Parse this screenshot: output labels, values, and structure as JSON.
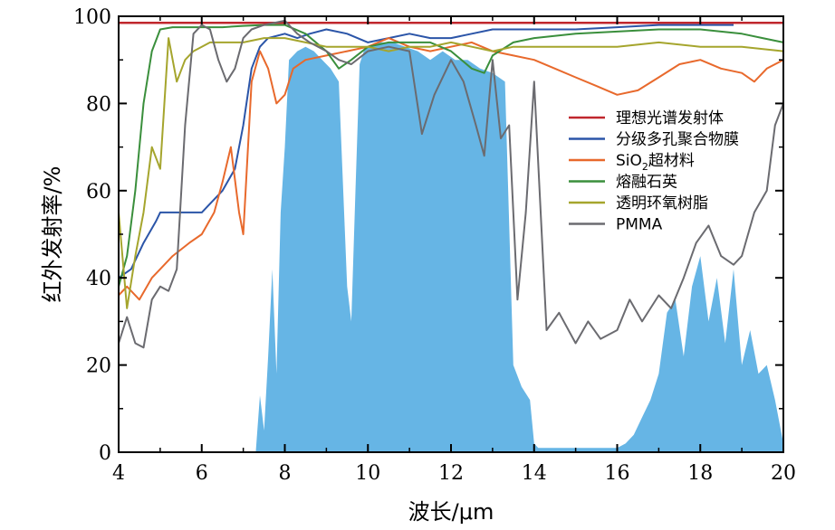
{
  "chart_data": {
    "type": "area",
    "title": "",
    "xlabel": "波长/μm",
    "ylabel": "红外发射率/%",
    "xlim": [
      4,
      20
    ],
    "ylim": [
      0,
      100
    ],
    "xticks": [
      4,
      6,
      8,
      10,
      12,
      14,
      16,
      18,
      20
    ],
    "yticks": [
      0,
      20,
      40,
      60,
      80,
      100
    ],
    "grid": false,
    "legend_position": "right",
    "atmospheric_window": {
      "color": "#66b5e5",
      "x": [
        4,
        7.3,
        7.4,
        7.5,
        7.6,
        7.7,
        7.8,
        7.9,
        8.0,
        8.1,
        8.3,
        8.5,
        8.7,
        8.9,
        9.1,
        9.3,
        9.5,
        9.6,
        9.7,
        9.8,
        9.9,
        10.0,
        10.3,
        10.6,
        10.9,
        11.2,
        11.5,
        11.8,
        12.1,
        12.4,
        12.7,
        13.0,
        13.3,
        13.5,
        13.7,
        13.9,
        14.0,
        14.1,
        16.0,
        16.2,
        16.4,
        16.6,
        16.8,
        17.0,
        17.2,
        17.4,
        17.6,
        17.8,
        18.0,
        18.2,
        18.4,
        18.6,
        18.8,
        19.0,
        19.2,
        19.4,
        19.6,
        19.8,
        20.0
      ],
      "y": [
        0,
        0,
        13,
        5,
        22,
        42,
        18,
        55,
        70,
        90,
        92,
        93,
        92,
        90,
        88,
        85,
        38,
        30,
        60,
        89,
        92,
        93,
        94,
        94,
        93,
        92,
        90,
        92,
        90,
        90,
        88,
        87,
        85,
        20,
        15,
        12,
        2,
        1,
        1,
        2,
        4,
        8,
        12,
        18,
        32,
        35,
        22,
        38,
        45,
        30,
        40,
        25,
        42,
        20,
        28,
        18,
        20,
        12,
        2
      ]
    },
    "series": [
      {
        "name": "理想光谱发射体",
        "color": "#c0272d",
        "x": [
          4,
          20
        ],
        "y": [
          98.5,
          98.5
        ]
      },
      {
        "name": "分级多孔聚合物膜",
        "color": "#2b55a8",
        "x": [
          4,
          4.3,
          4.6,
          4.9,
          5.0,
          5.3,
          5.6,
          6.0,
          6.2,
          6.5,
          6.8,
          7.0,
          7.2,
          7.4,
          7.6,
          8.0,
          8.3,
          8.6,
          9.0,
          9.5,
          10.0,
          10.5,
          11.0,
          11.5,
          12.0,
          12.5,
          13.0,
          13.5,
          14.0,
          15.0,
          16.0,
          17.0,
          18.0,
          18.8
        ],
        "y": [
          40,
          42,
          48,
          53,
          55,
          55,
          55,
          55,
          57,
          60,
          65,
          75,
          88,
          93,
          95,
          96,
          95,
          96,
          97,
          96,
          94,
          95,
          96,
          95,
          95,
          96,
          97,
          97,
          97,
          97,
          97.5,
          98,
          98,
          98
        ]
      },
      {
        "name": "SiO2超材料",
        "color": "#e8692c",
        "x": [
          4,
          4.2,
          4.5,
          4.8,
          5.0,
          5.3,
          5.7,
          6.0,
          6.3,
          6.5,
          6.7,
          6.9,
          7.0,
          7.2,
          7.4,
          7.6,
          7.8,
          8.0,
          8.2,
          8.5,
          9.0,
          9.5,
          10.0,
          10.5,
          11.0,
          11.5,
          12.0,
          12.5,
          13.0,
          13.5,
          14.0,
          14.5,
          15.0,
          15.5,
          16.0,
          16.5,
          17.0,
          17.5,
          18.0,
          18.5,
          19.0,
          19.3,
          19.6,
          20.0
        ],
        "y": [
          36,
          38,
          35,
          40,
          42,
          45,
          48,
          50,
          55,
          62,
          70,
          55,
          50,
          85,
          92,
          88,
          80,
          82,
          88,
          90,
          91,
          92,
          93,
          95,
          93,
          92,
          93,
          94,
          92,
          91,
          90,
          88,
          86,
          84,
          82,
          83,
          86,
          89,
          90,
          88,
          87,
          85,
          88,
          90
        ]
      },
      {
        "name": "熔融石英",
        "color": "#3a8f3c",
        "x": [
          4,
          4.2,
          4.4,
          4.6,
          4.8,
          5.0,
          5.3,
          5.6,
          6.0,
          6.5,
          7.0,
          7.5,
          8.0,
          8.5,
          9.0,
          9.3,
          9.6,
          10.0,
          10.5,
          11.0,
          11.5,
          12.0,
          12.5,
          12.8,
          13.0,
          13.5,
          14.0,
          15.0,
          16.0,
          17.0,
          18.0,
          19.0,
          19.5,
          20.0
        ],
        "y": [
          38,
          45,
          60,
          80,
          92,
          97,
          97.5,
          97.5,
          97.5,
          97.5,
          97.8,
          98,
          98,
          96,
          92,
          88,
          90,
          93,
          94,
          94,
          94,
          92,
          88,
          87,
          91,
          94,
          95,
          96,
          96.5,
          97,
          97,
          96,
          95,
          94
        ]
      },
      {
        "name": "透明环氧树脂",
        "color": "#a5a52d",
        "x": [
          4,
          4.2,
          4.4,
          4.6,
          4.8,
          5.0,
          5.2,
          5.4,
          5.6,
          5.8,
          6.0,
          6.2,
          6.5,
          7.0,
          7.5,
          8.0,
          8.5,
          9.0,
          9.5,
          10.0,
          10.5,
          11.0,
          11.5,
          12.0,
          12.5,
          13.0,
          13.5,
          14.0,
          15.0,
          16.0,
          17.0,
          18.0,
          19.0,
          20.0
        ],
        "y": [
          55,
          33,
          45,
          55,
          70,
          65,
          95,
          85,
          90,
          92,
          93,
          94,
          94,
          94,
          95,
          95,
          94,
          93,
          93,
          93,
          92,
          93,
          93,
          94,
          93,
          92,
          93,
          93,
          93,
          93,
          94,
          93,
          93,
          92
        ]
      },
      {
        "name": "PMMA",
        "color": "#6b6b70",
        "x": [
          4,
          4.2,
          4.4,
          4.6,
          4.8,
          5.0,
          5.2,
          5.4,
          5.6,
          5.8,
          6.0,
          6.2,
          6.4,
          6.6,
          6.8,
          7.0,
          7.2,
          7.5,
          8.0,
          8.3,
          8.6,
          9.0,
          9.3,
          9.6,
          10.0,
          10.5,
          11.0,
          11.3,
          11.6,
          12.0,
          12.3,
          12.6,
          12.8,
          13.0,
          13.2,
          13.4,
          13.6,
          13.8,
          14.0,
          14.3,
          14.6,
          15.0,
          15.3,
          15.6,
          16.0,
          16.3,
          16.6,
          17.0,
          17.3,
          17.6,
          17.9,
          18.2,
          18.5,
          18.8,
          19.0,
          19.3,
          19.6,
          19.8,
          20.0
        ],
        "y": [
          25,
          31,
          25,
          24,
          35,
          38,
          37,
          42,
          75,
          96,
          98,
          97,
          90,
          85,
          88,
          95,
          97,
          98,
          99,
          96,
          94,
          92,
          90,
          89,
          92,
          93,
          92,
          73,
          82,
          90,
          85,
          75,
          68,
          90,
          72,
          75,
          35,
          55,
          85,
          28,
          32,
          25,
          30,
          26,
          28,
          35,
          30,
          36,
          33,
          40,
          48,
          52,
          45,
          43,
          45,
          55,
          60,
          75,
          80
        ]
      }
    ]
  }
}
